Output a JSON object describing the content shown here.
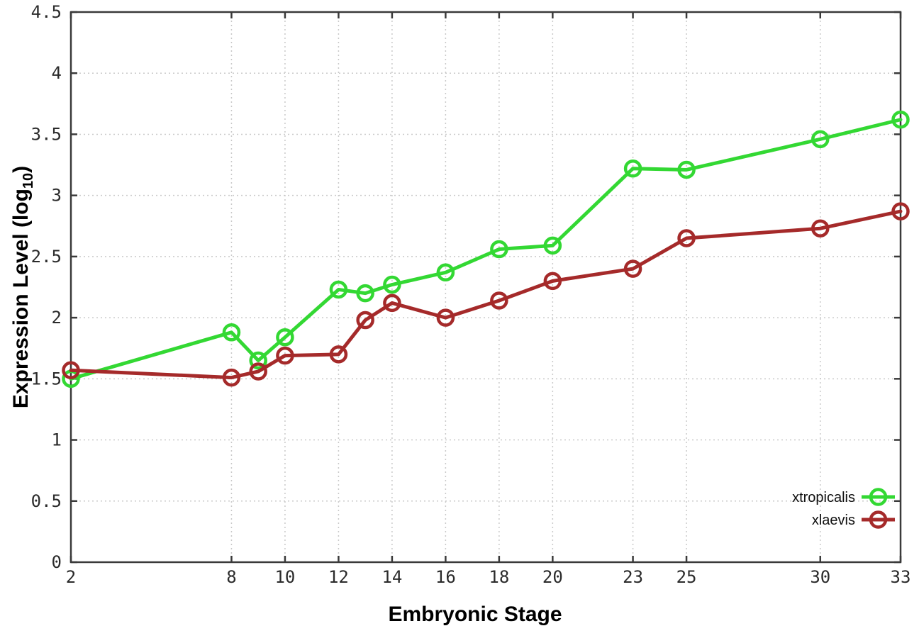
{
  "chart_data": {
    "type": "line",
    "x": [
      2,
      8,
      9,
      10,
      12,
      13,
      14,
      16,
      18,
      20,
      23,
      25,
      30,
      33
    ],
    "series": [
      {
        "name": "xtropicalis",
        "color": "#33d833",
        "values": [
          1.5,
          1.88,
          1.65,
          1.84,
          2.23,
          2.2,
          2.27,
          2.37,
          2.56,
          2.59,
          3.22,
          3.21,
          3.46,
          3.62
        ]
      },
      {
        "name": "xlaevis",
        "color": "#a52a2a",
        "values": [
          1.57,
          1.51,
          1.56,
          1.69,
          1.7,
          1.98,
          2.12,
          2.0,
          2.14,
          2.3,
          2.4,
          2.65,
          2.73,
          2.87
        ]
      }
    ],
    "title": "",
    "xlabel": "Embryonic Stage",
    "ylabel_prefix": "Expression Level (log",
    "ylabel_subscript": "10",
    "ylabel_suffix": ")",
    "xlim": [
      2,
      33
    ],
    "ylim": [
      0,
      4.5
    ],
    "xticks": [
      2,
      8,
      10,
      12,
      14,
      16,
      18,
      20,
      23,
      25,
      30,
      33
    ],
    "xtick_labels": [
      "2",
      "8",
      "10",
      "12",
      "14",
      "16",
      "18",
      "20",
      "23",
      "25",
      "30",
      "33"
    ],
    "yticks": [
      0,
      0.5,
      1,
      1.5,
      2,
      2.5,
      3,
      3.5,
      4,
      4.5
    ],
    "ytick_labels": [
      "0",
      "0.5",
      "1",
      "1.5",
      "2",
      "2.5",
      "3",
      "3.5",
      "4",
      "4.5"
    ],
    "grid": true,
    "grid_color": "#c9c9c9",
    "border_color": "#3a3a3a",
    "tick_label_color": "#2b2b2b",
    "legend_position": "bottom-right"
  }
}
